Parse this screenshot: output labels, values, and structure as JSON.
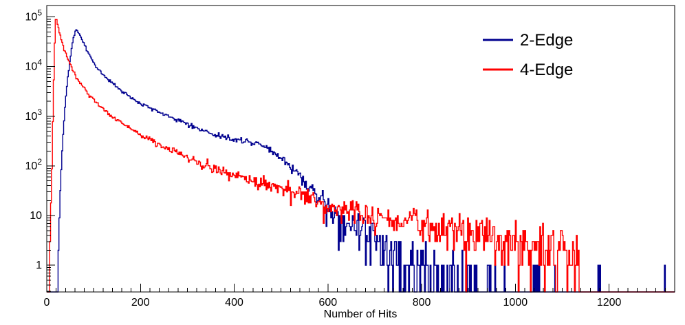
{
  "chart_data": {
    "type": "line",
    "title": "",
    "xlabel": "Number of Hits",
    "ylabel": "",
    "yscale": "log",
    "grid": false,
    "x_range": [
      0,
      1340
    ],
    "y_log_range": [
      0.29,
      170000
    ],
    "x_major_ticks": [
      0,
      200,
      400,
      600,
      800,
      1000,
      1200
    ],
    "x_minor_step": 20,
    "y_major_ticks": [
      1,
      10,
      100,
      1000,
      10000,
      100000
    ],
    "legend": {
      "position": "top-right",
      "entries": [
        "2-Edge",
        "4-Edge"
      ]
    },
    "bin_width": 2,
    "noise_seed": 1337,
    "series": [
      {
        "name": "2-Edge",
        "color": "#00008F",
        "peak": {
          "x": 62,
          "y": 55000
        },
        "anchors": [
          [
            0,
            0.0001
          ],
          [
            20,
            0.05
          ],
          [
            24,
            1
          ],
          [
            28,
            20
          ],
          [
            33,
            200
          ],
          [
            38,
            1200
          ],
          [
            44,
            5000
          ],
          [
            50,
            15000
          ],
          [
            56,
            35000
          ],
          [
            62,
            55000
          ],
          [
            68,
            50000
          ],
          [
            75,
            36000
          ],
          [
            82,
            26000
          ],
          [
            90,
            18000
          ],
          [
            100,
            12000
          ],
          [
            110,
            9000
          ],
          [
            120,
            7000
          ],
          [
            130,
            5600
          ],
          [
            140,
            4600
          ],
          [
            150,
            3800
          ],
          [
            165,
            3000
          ],
          [
            180,
            2400
          ],
          [
            200,
            1850
          ],
          [
            220,
            1500
          ],
          [
            240,
            1220
          ],
          [
            260,
            1000
          ],
          [
            280,
            830
          ],
          [
            300,
            700
          ],
          [
            320,
            580
          ],
          [
            340,
            490
          ],
          [
            360,
            430
          ],
          [
            380,
            380
          ],
          [
            400,
            345
          ],
          [
            420,
            320
          ],
          [
            435,
            305
          ],
          [
            450,
            280
          ],
          [
            465,
            245
          ],
          [
            480,
            195
          ],
          [
            495,
            150
          ],
          [
            510,
            115
          ],
          [
            525,
            85
          ],
          [
            540,
            62
          ],
          [
            555,
            45
          ],
          [
            570,
            33
          ],
          [
            585,
            24
          ],
          [
            600,
            17
          ],
          [
            615,
            13
          ],
          [
            630,
            10
          ],
          [
            645,
            8
          ],
          [
            660,
            6.5
          ],
          [
            675,
            5
          ],
          [
            690,
            4
          ],
          [
            705,
            3.2
          ],
          [
            720,
            2.6
          ],
          [
            735,
            2.1
          ],
          [
            750,
            1.7
          ],
          [
            765,
            1.4
          ],
          [
            780,
            1.15
          ],
          [
            800,
            0.9
          ],
          [
            820,
            0.7
          ],
          [
            840,
            0.55
          ],
          [
            860,
            0.45
          ],
          [
            880,
            0.38
          ],
          [
            900,
            0.32
          ],
          [
            930,
            0.25
          ],
          [
            960,
            0.2
          ],
          [
            1000,
            0.15
          ],
          [
            1050,
            0.1
          ],
          [
            1100,
            0.07
          ],
          [
            1150,
            0.05
          ],
          [
            1200,
            0.05
          ],
          [
            1250,
            0.04
          ],
          [
            1300,
            0.04
          ],
          [
            1340,
            0.05
          ]
        ]
      },
      {
        "name": "4-Edge",
        "color": "#FF0000",
        "peak": {
          "x": 19.5,
          "y": 105000
        },
        "anchors": [
          [
            0,
            0.0001
          ],
          [
            5,
            0.2
          ],
          [
            8,
            5
          ],
          [
            11,
            100
          ],
          [
            14,
            2000
          ],
          [
            16,
            15000
          ],
          [
            18,
            60000
          ],
          [
            19.5,
            105000
          ],
          [
            21,
            90000
          ],
          [
            24,
            65000
          ],
          [
            28,
            45000
          ],
          [
            33,
            30000
          ],
          [
            39,
            20000
          ],
          [
            46,
            13500
          ],
          [
            54,
            9000
          ],
          [
            62,
            6500
          ],
          [
            72,
            4600
          ],
          [
            82,
            3400
          ],
          [
            95,
            2400
          ],
          [
            110,
            1750
          ],
          [
            125,
            1300
          ],
          [
            140,
            1000
          ],
          [
            155,
            790
          ],
          [
            170,
            640
          ],
          [
            190,
            490
          ],
          [
            210,
            385
          ],
          [
            230,
            305
          ],
          [
            250,
            245
          ],
          [
            270,
            200
          ],
          [
            290,
            163
          ],
          [
            310,
            135
          ],
          [
            335,
            108
          ],
          [
            360,
            88
          ],
          [
            390,
            70
          ],
          [
            420,
            57
          ],
          [
            450,
            47
          ],
          [
            480,
            39
          ],
          [
            510,
            33
          ],
          [
            540,
            28
          ],
          [
            570,
            22
          ],
          [
            600,
            15
          ],
          [
            630,
            13
          ],
          [
            660,
            11.5
          ],
          [
            690,
            10
          ],
          [
            720,
            9
          ],
          [
            750,
            8
          ],
          [
            780,
            7.2
          ],
          [
            810,
            6.5
          ],
          [
            840,
            5.8
          ],
          [
            870,
            5.2
          ],
          [
            900,
            4.7
          ],
          [
            930,
            4.2
          ],
          [
            960,
            3.8
          ],
          [
            1000,
            3.3
          ],
          [
            1040,
            2.9
          ],
          [
            1080,
            2.6
          ],
          [
            1110,
            2.4
          ],
          [
            1135,
            2.2
          ],
          [
            1141,
            0.0001
          ],
          [
            1340,
            0.0001
          ]
        ]
      }
    ]
  },
  "colors": {
    "background": "#FFFFFF",
    "axis": "#000000",
    "text": "#000000"
  }
}
